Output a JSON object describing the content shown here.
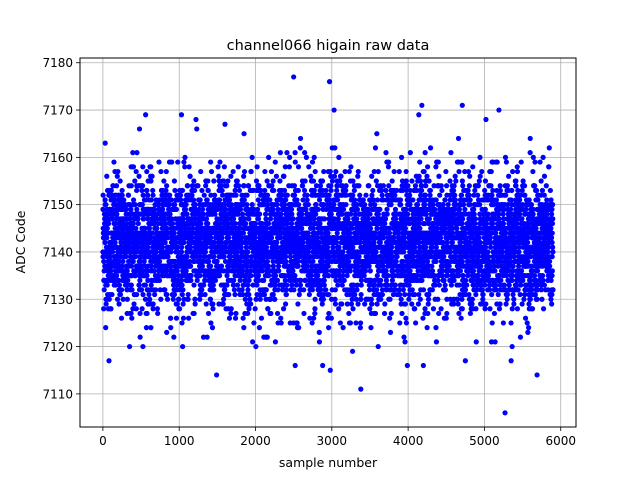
{
  "chart_data": {
    "type": "scatter",
    "title": "channel066 higain raw data",
    "xlabel": "sample number",
    "ylabel": "ADC Code",
    "xlim": [
      -300,
      6200
    ],
    "ylim": [
      7103,
      7181
    ],
    "xticks": [
      0,
      1000,
      2000,
      3000,
      4000,
      5000,
      6000
    ],
    "yticks": [
      7110,
      7120,
      7130,
      7140,
      7150,
      7160,
      7170,
      7180
    ],
    "xtick_labels": [
      "0",
      "1000",
      "2000",
      "3000",
      "4000",
      "5000",
      "6000"
    ],
    "ytick_labels": [
      "7110",
      "7120",
      "7130",
      "7140",
      "7150",
      "7160",
      "7170",
      "7180"
    ],
    "grid": true,
    "marker_color": "#0000ff",
    "n_points": 5900,
    "bulk_mean": 7142,
    "bulk_stddev": 7,
    "outliers": [
      {
        "x": 30,
        "y": 7163
      },
      {
        "x": 80,
        "y": 7117
      },
      {
        "x": 480,
        "y": 7166
      },
      {
        "x": 560,
        "y": 7169
      },
      {
        "x": 1030,
        "y": 7169
      },
      {
        "x": 1220,
        "y": 7168
      },
      {
        "x": 1230,
        "y": 7166
      },
      {
        "x": 1490,
        "y": 7114
      },
      {
        "x": 1600,
        "y": 7167
      },
      {
        "x": 1850,
        "y": 7165
      },
      {
        "x": 2500,
        "y": 7177
      },
      {
        "x": 2520,
        "y": 7116
      },
      {
        "x": 2590,
        "y": 7164
      },
      {
        "x": 2880,
        "y": 7116
      },
      {
        "x": 2970,
        "y": 7176
      },
      {
        "x": 2980,
        "y": 7115
      },
      {
        "x": 3030,
        "y": 7170
      },
      {
        "x": 3380,
        "y": 7111
      },
      {
        "x": 3590,
        "y": 7165
      },
      {
        "x": 3990,
        "y": 7116
      },
      {
        "x": 4140,
        "y": 7169
      },
      {
        "x": 4180,
        "y": 7171
      },
      {
        "x": 4200,
        "y": 7116
      },
      {
        "x": 4660,
        "y": 7164
      },
      {
        "x": 4710,
        "y": 7171
      },
      {
        "x": 4750,
        "y": 7117
      },
      {
        "x": 5020,
        "y": 7168
      },
      {
        "x": 5190,
        "y": 7170
      },
      {
        "x": 5270,
        "y": 7106
      },
      {
        "x": 5350,
        "y": 7117
      },
      {
        "x": 5600,
        "y": 7164
      },
      {
        "x": 5690,
        "y": 7114
      },
      {
        "x": 5850,
        "y": 7162
      }
    ]
  }
}
